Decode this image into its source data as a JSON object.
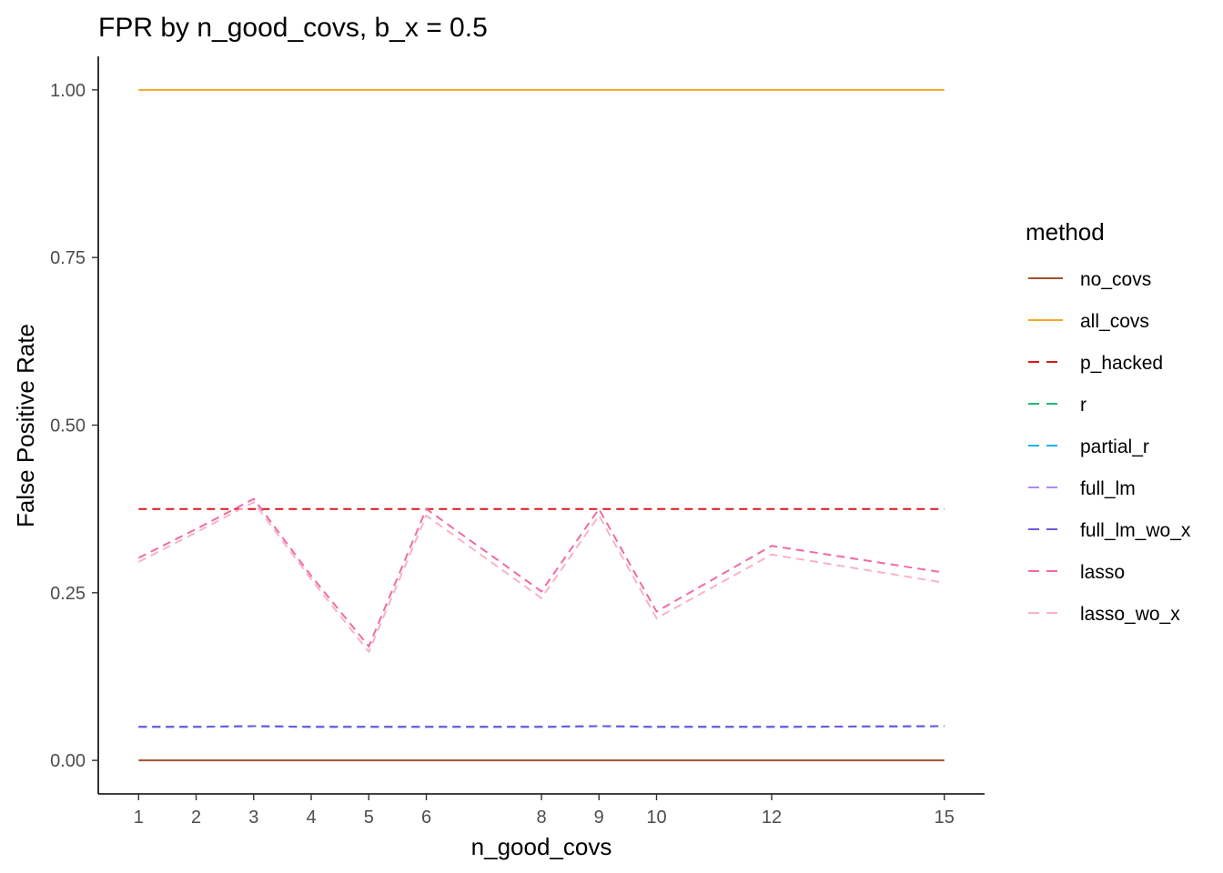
{
  "chart_data": {
    "type": "line",
    "title": "FPR by n_good_covs, b_x = 0.5",
    "xlabel": "n_good_covs",
    "ylabel": "False Positive Rate",
    "x": [
      1,
      2,
      3,
      4,
      5,
      6,
      8,
      9,
      10,
      12,
      15
    ],
    "x_ticks": [
      1,
      2,
      3,
      4,
      5,
      6,
      8,
      9,
      10,
      12,
      15
    ],
    "y_ticks": [
      "0.00",
      "0.25",
      "0.50",
      "0.75",
      "1.00"
    ],
    "xlim": [
      0.3,
      15.7
    ],
    "ylim": [
      -0.05,
      1.05
    ],
    "grid": false,
    "legend": {
      "title": "method",
      "position": "right"
    },
    "series": [
      {
        "name": "no_covs",
        "color": "#a0522d",
        "dashed": false,
        "values": [
          0.0,
          0.0,
          0.0,
          0.0,
          0.0,
          0.0,
          0.0,
          0.0,
          0.0,
          0.0,
          0.0
        ]
      },
      {
        "name": "all_covs",
        "color": "#f5a623",
        "dashed": false,
        "values": [
          1.0,
          1.0,
          1.0,
          1.0,
          1.0,
          1.0,
          1.0,
          1.0,
          1.0,
          1.0,
          1.0
        ]
      },
      {
        "name": "p_hacked",
        "color": "#d7191c",
        "dashed": true,
        "values": [
          0.375,
          0.375,
          0.375,
          0.375,
          0.375,
          0.375,
          0.375,
          0.375,
          0.375,
          0.375,
          0.375
        ]
      },
      {
        "name": "r",
        "color": "#1bbc78",
        "dashed": true,
        "values": [
          0.05,
          0.05,
          0.051,
          0.05,
          0.05,
          0.05,
          0.05,
          0.051,
          0.05,
          0.05,
          0.051
        ]
      },
      {
        "name": "partial_r",
        "color": "#1cb4e8",
        "dashed": true,
        "values": [
          0.05,
          0.05,
          0.051,
          0.05,
          0.05,
          0.05,
          0.05,
          0.051,
          0.05,
          0.05,
          0.051
        ]
      },
      {
        "name": "full_lm",
        "color": "#a98bf0",
        "dashed": true,
        "values": [
          0.05,
          0.05,
          0.051,
          0.05,
          0.05,
          0.05,
          0.05,
          0.051,
          0.05,
          0.05,
          0.051
        ]
      },
      {
        "name": "full_lm_wo_x",
        "color": "#6a5ae0",
        "dashed": true,
        "values": [
          0.05,
          0.05,
          0.051,
          0.05,
          0.05,
          0.05,
          0.05,
          0.051,
          0.05,
          0.05,
          0.051
        ]
      },
      {
        "name": "lasso",
        "color": "#f06aa8",
        "dashed": true,
        "values": [
          0.302,
          0.345,
          0.39,
          0.275,
          0.17,
          0.375,
          0.252,
          0.375,
          0.222,
          0.32,
          0.28
        ]
      },
      {
        "name": "lasso_wo_x",
        "color": "#f9b3c7",
        "dashed": true,
        "values": [
          0.296,
          0.34,
          0.385,
          0.27,
          0.162,
          0.365,
          0.242,
          0.365,
          0.212,
          0.307,
          0.265
        ]
      }
    ]
  }
}
